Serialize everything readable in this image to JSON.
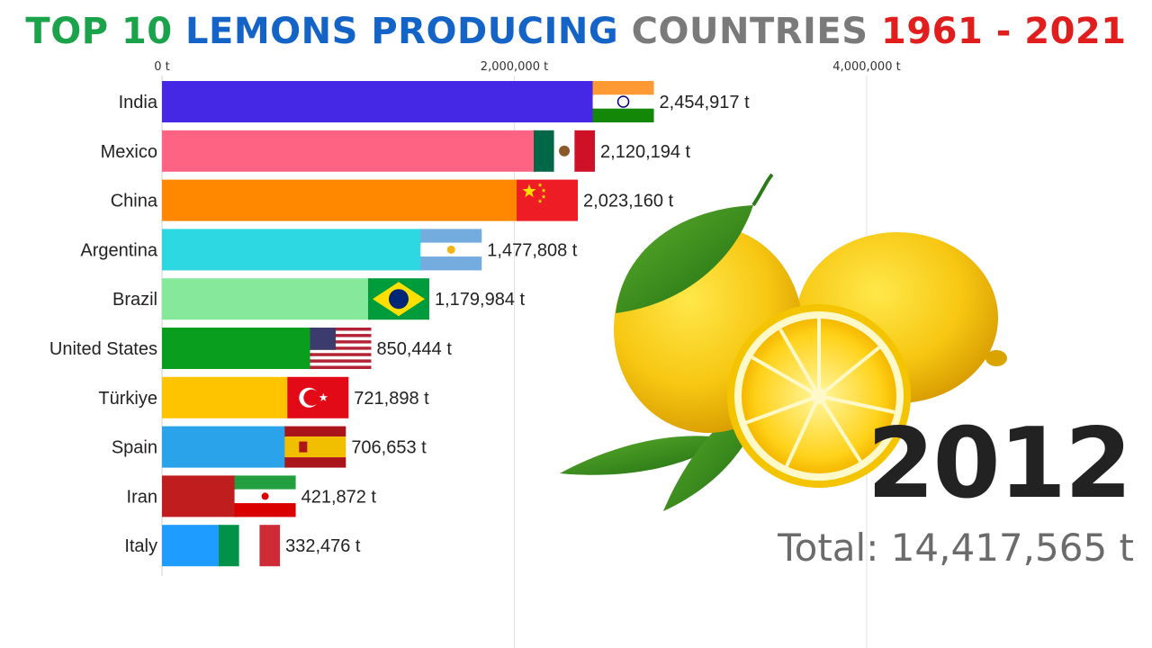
{
  "title": {
    "parts": [
      {
        "text": "TOP 10 ",
        "color": "#1aa34a"
      },
      {
        "text": "LEMONS PRODUCING ",
        "color": "#1464c8"
      },
      {
        "text": "COUNTRIES ",
        "color": "#7a7a7a"
      },
      {
        "text": "1961 - 2021",
        "color": "#e01e1e"
      }
    ]
  },
  "year": "2012",
  "total": "Total: 14,417,565 t",
  "chart_data": {
    "type": "bar",
    "orientation": "horizontal",
    "unit": "t",
    "xlim": [
      0,
      4000000
    ],
    "xticks": [
      0,
      2000000,
      4000000
    ],
    "xtick_labels": [
      "0 t",
      "2,000,000 t",
      "4,000,000 t"
    ],
    "grid": true,
    "categories": [
      "India",
      "Mexico",
      "China",
      "Argentina",
      "Brazil",
      "United States",
      "Türkiye",
      "Spain",
      "Iran",
      "Italy"
    ],
    "values": [
      2454917,
      2120194,
      2023160,
      1477808,
      1179984,
      850444,
      721898,
      706653,
      421872,
      332476
    ],
    "value_labels": [
      "2,454,917 t",
      "2,120,194 t",
      "2,023,160 t",
      "1,477,808 t",
      "1,179,984 t",
      "850,444 t",
      "721,898 t",
      "706,653 t",
      "421,872 t",
      "332,476 t"
    ],
    "colors": [
      "#4527e6",
      "#ff6384",
      "#ff8800",
      "#2dd8e3",
      "#86e89a",
      "#0a9e1e",
      "#ffc400",
      "#2aa3ea",
      "#c01e1e",
      "#1e9cff"
    ],
    "flags": [
      "india-flag",
      "mexico-flag",
      "china-flag",
      "argentina-flag",
      "brazil-flag",
      "usa-flag",
      "turkiye-flag",
      "spain-flag",
      "iran-flag",
      "italy-flag"
    ]
  },
  "illustration": "lemons-image"
}
